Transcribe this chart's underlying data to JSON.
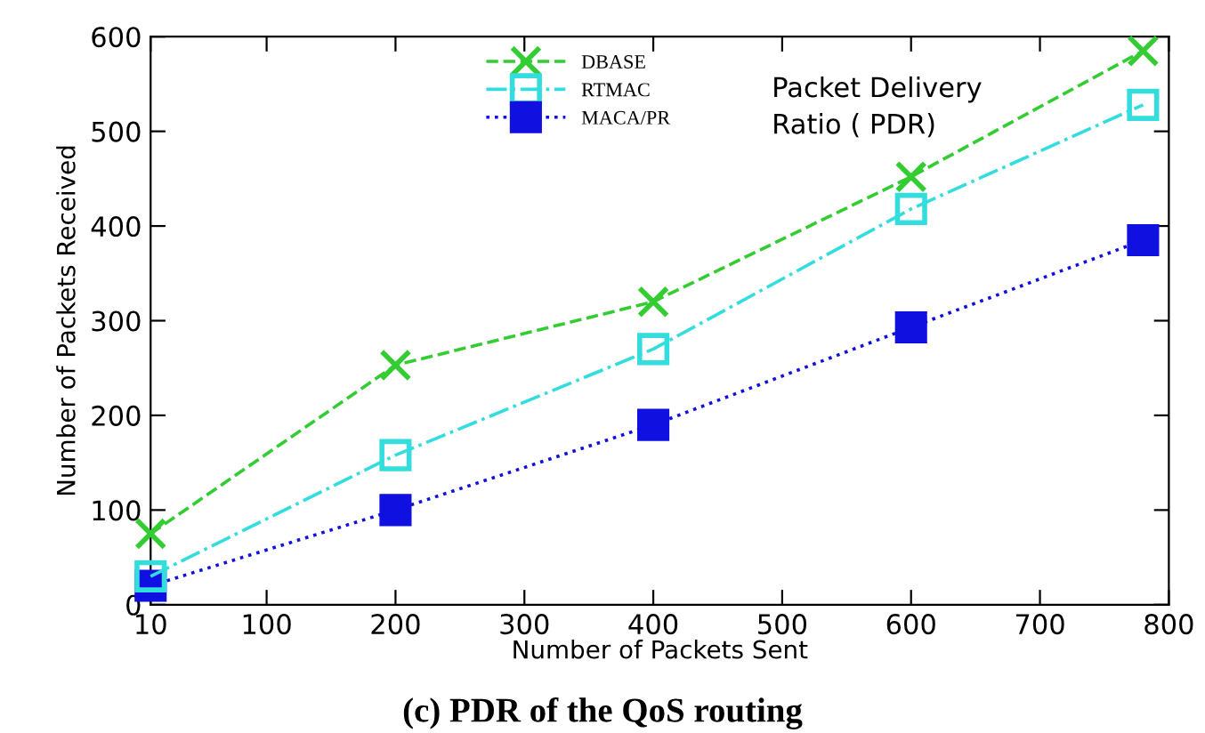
{
  "chart_data": {
    "type": "line",
    "title": "(c) PDR of the QoS routing",
    "xlabel": "Number of Packets Sent",
    "ylabel": "Number of Packets Received",
    "annotations": [
      "Packet Delivery\nRatio ( PDR)"
    ],
    "x": [
      10,
      200,
      400,
      600,
      780
    ],
    "series": [
      {
        "name": "DBASE",
        "color": "#33cc33",
        "marker": "cross",
        "line_style": "dashed",
        "values": [
          75,
          253,
          320,
          452,
          585
        ]
      },
      {
        "name": "RTMAC",
        "color": "#33dddd",
        "marker": "square",
        "line_style": "dashdot",
        "values": [
          30,
          158,
          270,
          418,
          528
        ]
      },
      {
        "name": "MACA/PR",
        "color": "#1010e0",
        "marker": "square",
        "line_style": "dotted",
        "values": [
          20,
          100,
          190,
          293,
          385
        ]
      }
    ],
    "xlim": [
      10,
      800
    ],
    "xticks": [
      10,
      100,
      200,
      300,
      400,
      500,
      600,
      700,
      800
    ],
    "ylim": [
      0,
      600
    ],
    "yticks": [
      0,
      100,
      200,
      300,
      400,
      500,
      600
    ],
    "grid": false,
    "legend": "top"
  }
}
